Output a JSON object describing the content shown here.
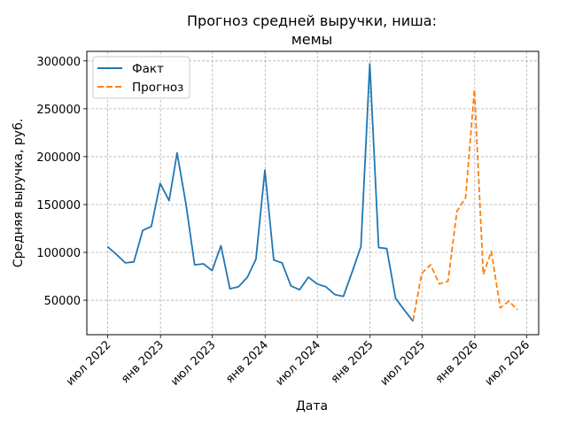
{
  "chart_data": {
    "type": "line",
    "title": "Прогноз средней выручки, ниша:",
    "title_line2": "мемы",
    "xlabel": "Дата",
    "ylabel": "Средняя выручка, руб.",
    "grid": true,
    "legend_placement": "top-left",
    "x_tick_labels": [
      "июл 2022",
      "янв 2023",
      "июл 2023",
      "янв 2024",
      "июл 2024",
      "янв 2025",
      "июл 2025",
      "янв 2026",
      "июл 2026"
    ],
    "x_tick_dates": [
      "2022-07-01",
      "2023-01-01",
      "2023-07-01",
      "2024-01-01",
      "2024-07-01",
      "2025-01-01",
      "2025-07-01",
      "2026-01-01",
      "2026-07-01"
    ],
    "y_ticks": [
      50000,
      100000,
      150000,
      200000,
      250000,
      300000
    ],
    "y_tick_labels": [
      "50000",
      "100000",
      "150000",
      "200000",
      "250000",
      "300000"
    ],
    "xlim": [
      "2022-04-19",
      "2026-08-12"
    ],
    "ylim": [
      14000,
      310000
    ],
    "series": [
      {
        "name": "Факт",
        "color": "#1f77b4",
        "style": "solid",
        "points": [
          [
            "2022-06-30",
            106000
          ],
          [
            "2022-07-31",
            98000
          ],
          [
            "2022-08-31",
            89000
          ],
          [
            "2022-09-30",
            90000
          ],
          [
            "2022-10-31",
            123000
          ],
          [
            "2022-11-30",
            127000
          ],
          [
            "2022-12-31",
            172000
          ],
          [
            "2023-01-31",
            154000
          ],
          [
            "2023-02-28",
            204000
          ],
          [
            "2023-03-31",
            150000
          ],
          [
            "2023-04-30",
            87000
          ],
          [
            "2023-05-31",
            88000
          ],
          [
            "2023-06-30",
            81000
          ],
          [
            "2023-07-31",
            107000
          ],
          [
            "2023-08-31",
            62000
          ],
          [
            "2023-09-30",
            64000
          ],
          [
            "2023-10-31",
            74000
          ],
          [
            "2023-11-30",
            93000
          ],
          [
            "2023-12-31",
            186000
          ],
          [
            "2024-01-31",
            92000
          ],
          [
            "2024-02-29",
            89000
          ],
          [
            "2024-03-31",
            65000
          ],
          [
            "2024-04-30",
            61000
          ],
          [
            "2024-05-31",
            74000
          ],
          [
            "2024-06-30",
            67000
          ],
          [
            "2024-07-31",
            64000
          ],
          [
            "2024-08-31",
            56000
          ],
          [
            "2024-09-30",
            54000
          ],
          [
            "2024-10-31",
            80000
          ],
          [
            "2024-11-30",
            106000
          ],
          [
            "2024-12-31",
            297000
          ],
          [
            "2025-01-31",
            105000
          ],
          [
            "2025-02-28",
            104000
          ],
          [
            "2025-03-31",
            52000
          ],
          [
            "2025-04-30",
            40000
          ],
          [
            "2025-05-31",
            28000
          ]
        ]
      },
      {
        "name": "Прогноз",
        "color": "#ff7f0e",
        "style": "dashed",
        "points": [
          [
            "2025-05-31",
            29000
          ],
          [
            "2025-06-30",
            78000
          ],
          [
            "2025-07-31",
            87000
          ],
          [
            "2025-08-31",
            67000
          ],
          [
            "2025-09-30",
            70000
          ],
          [
            "2025-10-31",
            143000
          ],
          [
            "2025-11-30",
            157000
          ],
          [
            "2025-12-31",
            270000
          ],
          [
            "2026-01-31",
            77000
          ],
          [
            "2026-02-28",
            101000
          ],
          [
            "2026-03-31",
            42000
          ],
          [
            "2026-04-30",
            49000
          ],
          [
            "2026-05-31",
            40000
          ]
        ]
      }
    ]
  }
}
